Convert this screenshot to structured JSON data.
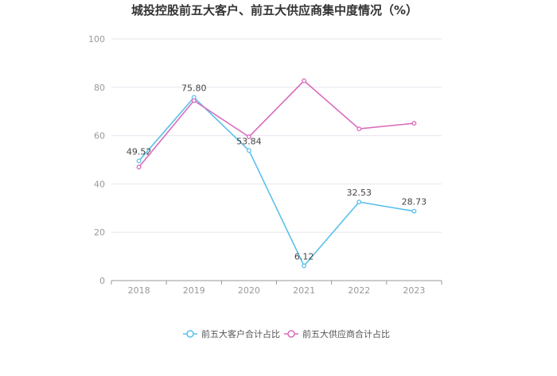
{
  "chart_data": {
    "type": "line",
    "title": "城投控股前五大客户、前五大供应商集中度情况（%）",
    "categories": [
      "2018",
      "2019",
      "2020",
      "2021",
      "2022",
      "2023"
    ],
    "ylim": [
      0,
      100
    ],
    "yticks": [
      "0",
      "20",
      "40",
      "60",
      "80",
      "100"
    ],
    "grid": true,
    "legend_position": "bottom",
    "series": [
      {
        "name": "前五大客户合计占比",
        "color": "#5bc0eb",
        "values": [
          49.52,
          75.8,
          53.84,
          6.12,
          32.53,
          28.73
        ],
        "labels": [
          "49.52",
          "75.80",
          "53.84",
          "6.12",
          "32.53",
          "28.73"
        ]
      },
      {
        "name": "前五大供应商合计占比",
        "color": "#d96bbd",
        "values": [
          47.0,
          74.5,
          59.5,
          82.7,
          62.8,
          65.1
        ]
      }
    ]
  }
}
